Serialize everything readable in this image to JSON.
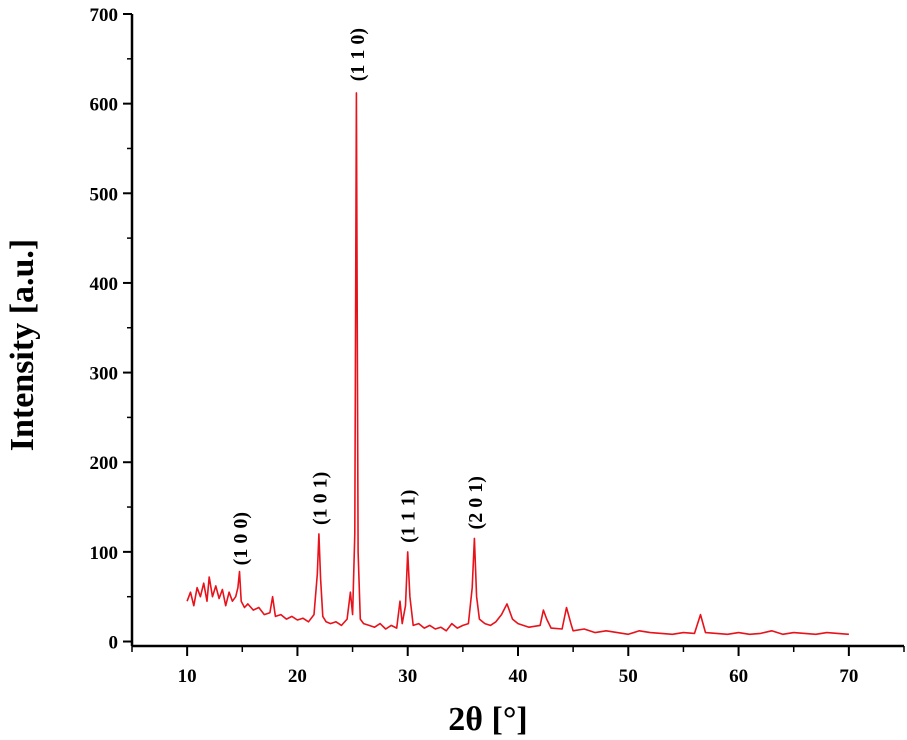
{
  "chart_data": {
    "type": "line",
    "xlabel": "2θ [°]",
    "ylabel": "Intensity [a.u.]",
    "xlim": [
      5,
      75
    ],
    "ylim": [
      -5,
      700
    ],
    "x_ticks": [
      10,
      20,
      30,
      40,
      50,
      60,
      70
    ],
    "y_ticks": [
      0,
      100,
      200,
      300,
      400,
      500,
      600,
      700
    ],
    "grid": false,
    "series_color": "#e8121b",
    "series": [
      {
        "x": [
          10.0,
          10.3,
          10.6,
          10.9,
          11.2,
          11.5,
          11.8,
          12.0,
          12.3,
          12.6,
          12.9,
          13.2,
          13.5,
          13.8,
          14.1,
          14.4,
          14.6,
          14.75,
          14.9,
          15.2,
          15.5,
          16.0,
          16.5,
          17.0,
          17.5,
          17.75,
          18.0,
          18.5,
          19.0,
          19.5,
          20.0,
          20.5,
          21.0,
          21.5,
          21.8,
          21.95,
          22.1,
          22.3,
          22.6,
          23.0,
          23.5,
          24.0,
          24.5,
          24.8,
          25.0,
          25.2,
          25.35,
          25.5,
          25.7,
          26.0,
          26.5,
          27.0,
          27.5,
          28.0,
          28.5,
          29.0,
          29.3,
          29.5,
          29.8,
          30.0,
          30.2,
          30.5,
          31.0,
          31.5,
          32.0,
          32.5,
          33.0,
          33.5,
          34.0,
          34.5,
          35.0,
          35.5,
          35.85,
          36.05,
          36.25,
          36.5,
          37.0,
          37.5,
          38.0,
          38.5,
          39.0,
          39.5,
          40.0,
          41.0,
          42.0,
          42.3,
          42.6,
          43.0,
          44.0,
          44.4,
          44.8,
          45.0,
          46.0,
          47.0,
          48.0,
          49.0,
          50.0,
          51.0,
          52.0,
          53.0,
          54.0,
          55.0,
          56.0,
          56.55,
          57.0,
          58.0,
          59.0,
          60.0,
          61.0,
          62.0,
          63.0,
          64.0,
          65.0,
          66.0,
          67.0,
          68.0,
          69.0,
          70.0
        ],
        "y": [
          45,
          55,
          40,
          60,
          50,
          65,
          45,
          72,
          50,
          62,
          48,
          58,
          40,
          55,
          45,
          50,
          60,
          78,
          45,
          38,
          42,
          35,
          38,
          30,
          32,
          50,
          28,
          30,
          25,
          28,
          24,
          26,
          22,
          30,
          75,
          120,
          70,
          28,
          22,
          20,
          22,
          18,
          25,
          55,
          30,
          120,
          612,
          100,
          25,
          20,
          18,
          16,
          20,
          14,
          18,
          15,
          45,
          20,
          40,
          100,
          50,
          18,
          20,
          15,
          18,
          14,
          16,
          12,
          20,
          15,
          18,
          20,
          60,
          115,
          50,
          25,
          20,
          18,
          22,
          30,
          42,
          25,
          20,
          16,
          18,
          35,
          25,
          15,
          14,
          38,
          20,
          12,
          14,
          10,
          12,
          10,
          8,
          12,
          10,
          9,
          8,
          10,
          9,
          30,
          10,
          9,
          8,
          10,
          8,
          9,
          12,
          8,
          10,
          9,
          8,
          10,
          9,
          8
        ]
      }
    ],
    "annotations": [
      {
        "text": "(1 0 0)",
        "x": 14.8,
        "y": 85
      },
      {
        "text": "(1 0 1)",
        "x": 22.0,
        "y": 130
      },
      {
        "text": "(1 1 0)",
        "x": 25.4,
        "y": 625
      },
      {
        "text": "(1 1 1)",
        "x": 30.0,
        "y": 110
      },
      {
        "text": "(2 0 1)",
        "x": 36.1,
        "y": 125
      }
    ]
  }
}
